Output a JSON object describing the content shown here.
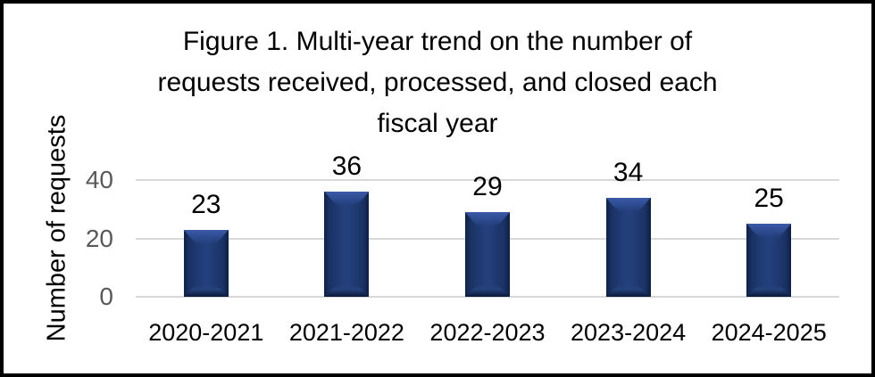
{
  "chart_data": {
    "type": "bar",
    "title": "Figure 1. Multi-year trend on the number of requests received, processed, and closed each fiscal year",
    "title_lines": [
      "Figure 1. Multi-year trend on the number of",
      "requests received, processed, and closed each",
      "fiscal year"
    ],
    "categories": [
      "2020-2021",
      "2021-2022",
      "2022-2023",
      "2023-2024",
      "2024-2025"
    ],
    "values": [
      23,
      36,
      29,
      34,
      25
    ],
    "xlabel": "",
    "ylabel": "Number of requests",
    "yticks": [
      0,
      20,
      40
    ],
    "ylim": [
      0,
      40
    ],
    "grid": true,
    "legend": false,
    "data_labels": true,
    "colors": {
      "bar_fill": "#1d3569",
      "bar_highlight": "#32519c",
      "bar_edge": "#0d1f43",
      "gridline": "#d9d9d9",
      "axis_tick_text": "#595959",
      "text": "#000000",
      "background": "#ffffff",
      "border": "#000000"
    }
  }
}
